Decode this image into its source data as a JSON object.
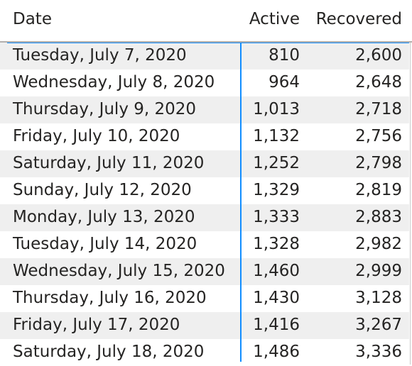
{
  "chart_data": {
    "type": "table",
    "columns": [
      "Date",
      "Active",
      "Recovered"
    ],
    "rows": [
      {
        "date": "Tuesday, July 7, 2020",
        "active": "810",
        "recovered": "2,600"
      },
      {
        "date": "Wednesday, July 8, 2020",
        "active": "964",
        "recovered": "2,648"
      },
      {
        "date": "Thursday, July 9, 2020",
        "active": "1,013",
        "recovered": "2,718"
      },
      {
        "date": "Friday, July 10, 2020",
        "active": "1,132",
        "recovered": "2,756"
      },
      {
        "date": "Saturday, July 11, 2020",
        "active": "1,252",
        "recovered": "2,798"
      },
      {
        "date": "Sunday, July 12, 2020",
        "active": "1,329",
        "recovered": "2,819"
      },
      {
        "date": "Monday, July 13, 2020",
        "active": "1,333",
        "recovered": "2,883"
      },
      {
        "date": "Tuesday, July 14, 2020",
        "active": "1,328",
        "recovered": "2,982"
      },
      {
        "date": "Wednesday, July 15, 2020",
        "active": "1,460",
        "recovered": "2,999"
      },
      {
        "date": "Thursday, July 16, 2020",
        "active": "1,430",
        "recovered": "3,128"
      },
      {
        "date": "Friday, July 17, 2020",
        "active": "1,416",
        "recovered": "3,267"
      },
      {
        "date": "Saturday, July 18, 2020",
        "active": "1,486",
        "recovered": "3,336"
      }
    ]
  },
  "colors": {
    "row_shade": "#efefef",
    "divider_accent": "#118dff",
    "text": "#252423"
  }
}
